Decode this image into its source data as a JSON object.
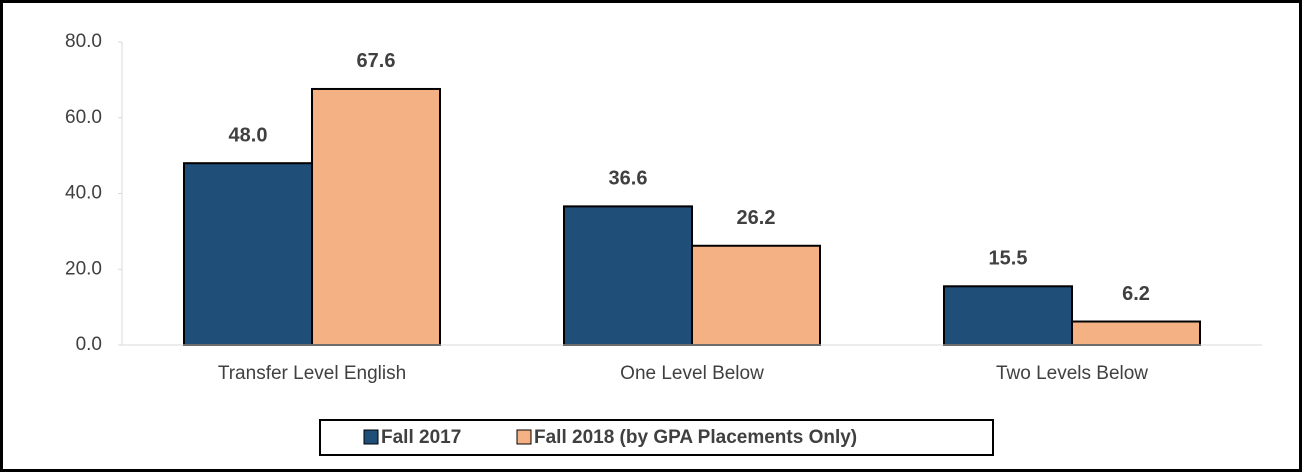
{
  "chart_data": {
    "type": "bar",
    "categories": [
      "Transfer Level English",
      "One Level Below",
      "Two Levels Below"
    ],
    "series": [
      {
        "name": "Fall 2017",
        "color": "#1f4e79",
        "values": [
          48.0,
          36.6,
          15.5
        ],
        "value_labels": [
          "48.0",
          "36.6",
          "15.5"
        ]
      },
      {
        "name": "Fall 2018 (by GPA Placements Only)",
        "color": "#f4b183",
        "values": [
          67.6,
          26.2,
          6.2
        ],
        "value_labels": [
          "67.6",
          "26.2",
          "6.2"
        ]
      }
    ],
    "ylim": [
      0,
      80
    ],
    "yticks": [
      {
        "value": 0,
        "label": "0.0"
      },
      {
        "value": 20,
        "label": "20.0"
      },
      {
        "value": 40,
        "label": "40.0"
      },
      {
        "value": 60,
        "label": "60.0"
      },
      {
        "value": 80,
        "label": "80.0"
      }
    ],
    "grid": false,
    "legend": "bottom"
  }
}
